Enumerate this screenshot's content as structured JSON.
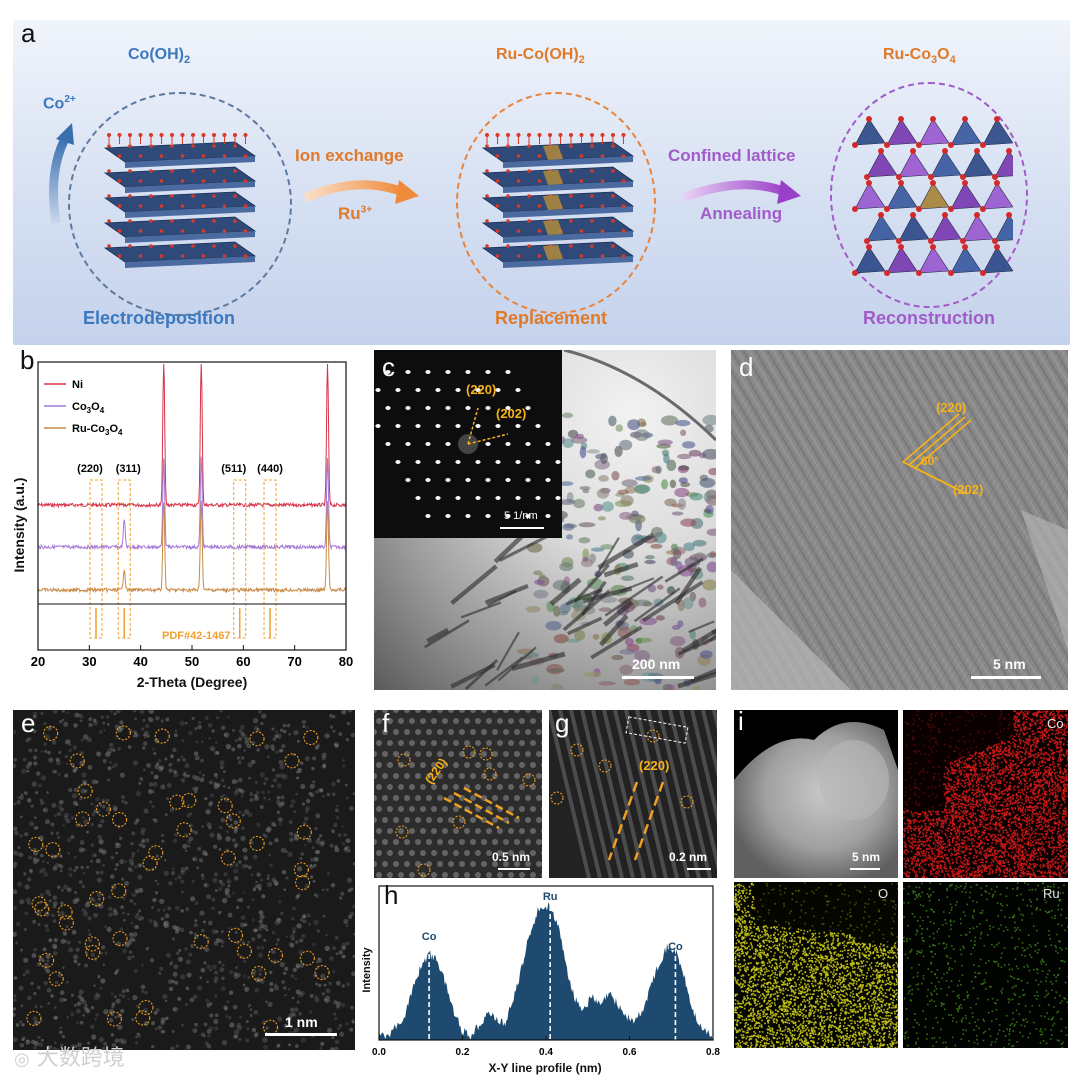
{
  "panel_a": {
    "label": "a",
    "stage1": {
      "title": "Co(OH)",
      "title_sub": "2",
      "ion": "Co",
      "ion_sup": "2+",
      "bottom": "Electrodeposition"
    },
    "stage2": {
      "title_pre": "Ru-",
      "title": "Co(OH)",
      "title_sub": "2",
      "arrow_top": "Ion exchange",
      "arrow_bottom": "Ru",
      "arrow_bottom_sup": "3+",
      "bottom": "Replacement"
    },
    "stage3": {
      "title_pre": "Ru-",
      "title": "Co",
      "title_sub1": "3",
      "title_mid": "O",
      "title_sub2": "4",
      "arrow_top": "Confined lattice",
      "arrow_bottom": "Annealing",
      "bottom": "Reconstruction"
    },
    "colors": {
      "blue": "#3a78c0",
      "orange": "#e07a2a",
      "purple": "#a05cc8"
    }
  },
  "panel_b": {
    "label": "b",
    "chart_data": {
      "type": "line",
      "xlabel": "2-Theta (Degree)",
      "ylabel": "Intensity (a.u.)",
      "xlim": [
        20,
        80
      ],
      "xticks": [
        "20",
        "30",
        "40",
        "50",
        "60",
        "70",
        "80"
      ],
      "series": [
        {
          "name": "Ni",
          "color": "#d6334a",
          "offset": 2,
          "peaks": [
            [
              44.5,
              1.0
            ],
            [
              51.8,
              1.0
            ],
            [
              76.4,
              1.0
            ]
          ]
        },
        {
          "name": "Co",
          "name_sub1": "3",
          "name_mid": "O",
          "name_sub2": "4",
          "color": "#a679d6",
          "offset": 1,
          "peaks": [
            [
              36.8,
              0.15
            ],
            [
              44.5,
              0.5
            ],
            [
              51.8,
              0.5
            ],
            [
              76.4,
              0.5
            ]
          ]
        },
        {
          "name_pre": "Ru-",
          "name": "Co",
          "name_sub1": "3",
          "name_mid": "O",
          "name_sub2": "4",
          "color": "#c98a48",
          "offset": 0,
          "peaks": [
            [
              36.8,
              0.12
            ],
            [
              44.5,
              0.5
            ],
            [
              51.8,
              0.5
            ],
            [
              76.4,
              0.5
            ]
          ]
        }
      ],
      "peak_labels": [
        {
          "text": "(220)",
          "x": 31.3
        },
        {
          "text": "(311)",
          "x": 36.8
        },
        {
          "text": "(511)",
          "x": 59.3
        },
        {
          "text": "(440)",
          "x": 65.2
        }
      ],
      "reference": "PDF#42-1467"
    }
  },
  "panel_c": {
    "label": "c",
    "spot_a": "(220)",
    "spot_b": "(202)",
    "inset_scale": "5 1/nm",
    "scale": "200 nm"
  },
  "panel_d": {
    "label": "d",
    "plane_a": "(220)",
    "plane_b": "(202)",
    "angle": "60°",
    "scale": "5 nm"
  },
  "panel_e": {
    "label": "e",
    "scale": "1 nm"
  },
  "panel_f": {
    "label": "f",
    "plane": "(220)",
    "scale": "0.5 nm"
  },
  "panel_g": {
    "label": "g",
    "plane": "(220)",
    "scale": "0.2 nm"
  },
  "panel_h": {
    "label": "h",
    "chart_data": {
      "type": "area",
      "xlabel": "X-Y line profile (nm)",
      "ylabel": "Intensity",
      "xlim": [
        0.0,
        0.8
      ],
      "xticks": [
        "0.0",
        "0.2",
        "0.4",
        "0.6",
        "0.8"
      ],
      "annotations": [
        {
          "text": "Co",
          "x": 0.12
        },
        {
          "text": "Ru",
          "x": 0.41
        },
        {
          "text": "Co",
          "x": 0.71
        }
      ],
      "x": [
        0.0,
        0.03,
        0.06,
        0.08,
        0.1,
        0.12,
        0.14,
        0.16,
        0.18,
        0.2,
        0.22,
        0.24,
        0.26,
        0.28,
        0.3,
        0.32,
        0.34,
        0.36,
        0.38,
        0.41,
        0.43,
        0.45,
        0.47,
        0.49,
        0.51,
        0.53,
        0.55,
        0.57,
        0.59,
        0.61,
        0.63,
        0.65,
        0.67,
        0.69,
        0.71,
        0.73,
        0.75,
        0.77,
        0.8
      ],
      "y": [
        0.02,
        0.05,
        0.15,
        0.32,
        0.48,
        0.56,
        0.52,
        0.36,
        0.18,
        0.06,
        0.03,
        0.1,
        0.18,
        0.14,
        0.1,
        0.24,
        0.45,
        0.68,
        0.84,
        0.88,
        0.72,
        0.46,
        0.26,
        0.2,
        0.28,
        0.22,
        0.3,
        0.24,
        0.16,
        0.12,
        0.18,
        0.34,
        0.5,
        0.6,
        0.58,
        0.42,
        0.2,
        0.08,
        0.02
      ],
      "color": "#1d4a6e"
    }
  },
  "panel_i": {
    "label": "i",
    "scale": "5 nm",
    "map_co": "Co",
    "map_o": "O",
    "map_ru": "Ru"
  },
  "watermark": "大数跨境"
}
